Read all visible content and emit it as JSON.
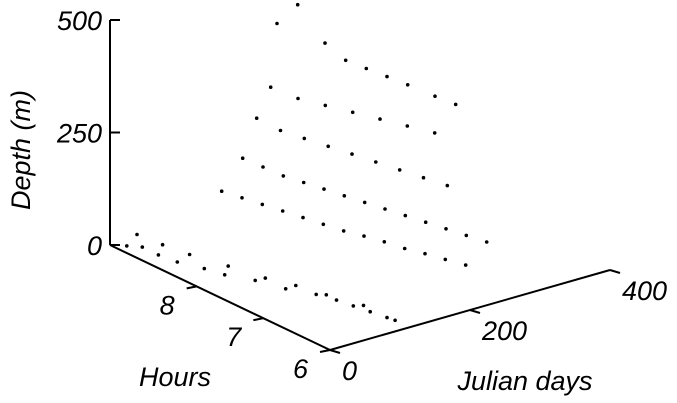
{
  "chart_data": {
    "type": "scatter",
    "projection": "3d",
    "xlabel": "Julian days",
    "ylabel": "Hours",
    "zlabel": "Depth (m)",
    "x_ticks": [
      {
        "value": 0,
        "label": "0"
      },
      {
        "value": 200,
        "label": "200"
      },
      {
        "value": 400,
        "label": "400"
      }
    ],
    "y_ticks": [
      {
        "value": 6,
        "label": "6"
      },
      {
        "value": 7,
        "label": "7"
      },
      {
        "value": 8,
        "label": "8"
      }
    ],
    "z_ticks": [
      {
        "value": 0,
        "label": "0"
      },
      {
        "value": 250,
        "label": "250"
      },
      {
        "value": 500,
        "label": "500"
      }
    ],
    "xlim": [
      0,
      400
    ],
    "ylim": [
      6,
      9.3
    ],
    "zlim": [
      0,
      500
    ],
    "grid": false,
    "series": [
      {
        "description_points": "approximate sampled points",
        "points": [
          [
            5,
            9.1,
            10
          ],
          [
            8,
            8.9,
            20
          ],
          [
            12,
            8.7,
            15
          ],
          [
            20,
            8.5,
            10
          ],
          [
            30,
            8.2,
            12
          ],
          [
            40,
            8.0,
            8
          ],
          [
            55,
            7.7,
            10
          ],
          [
            70,
            7.4,
            6
          ],
          [
            85,
            7.1,
            8
          ],
          [
            95,
            6.9,
            5
          ],
          [
            100,
            6.7,
            4
          ],
          [
            105,
            6.5,
            3
          ],
          [
            110,
            6.3,
            2
          ],
          [
            112,
            6.2,
            2
          ],
          [
            10,
            9.0,
            40
          ],
          [
            18,
            8.7,
            35
          ],
          [
            28,
            8.4,
            30
          ],
          [
            45,
            8.0,
            25
          ],
          [
            60,
            7.6,
            20
          ],
          [
            75,
            7.3,
            18
          ],
          [
            90,
            7.0,
            12
          ],
          [
            105,
            6.6,
            10
          ],
          [
            150,
            9.2,
            60
          ],
          [
            160,
            9.0,
            55
          ],
          [
            170,
            8.8,
            50
          ],
          [
            180,
            8.6,
            45
          ],
          [
            190,
            8.4,
            40
          ],
          [
            200,
            8.2,
            35
          ],
          [
            210,
            8.0,
            30
          ],
          [
            220,
            7.8,
            28
          ],
          [
            230,
            7.6,
            25
          ],
          [
            240,
            7.4,
            20
          ],
          [
            250,
            7.2,
            18
          ],
          [
            260,
            7.0,
            15
          ],
          [
            270,
            6.8,
            12
          ],
          [
            180,
            9.2,
            120
          ],
          [
            190,
            9.0,
            110
          ],
          [
            200,
            8.8,
            100
          ],
          [
            210,
            8.6,
            95
          ],
          [
            220,
            8.4,
            90
          ],
          [
            230,
            8.2,
            85
          ],
          [
            240,
            8.0,
            80
          ],
          [
            250,
            7.8,
            75
          ],
          [
            260,
            7.6,
            70
          ],
          [
            270,
            7.4,
            65
          ],
          [
            280,
            7.2,
            60
          ],
          [
            290,
            7.0,
            55
          ],
          [
            300,
            6.8,
            50
          ],
          [
            200,
            9.2,
            200
          ],
          [
            215,
            9.0,
            180
          ],
          [
            230,
            8.8,
            170
          ],
          [
            245,
            8.6,
            160
          ],
          [
            260,
            8.4,
            150
          ],
          [
            275,
            8.2,
            140
          ],
          [
            290,
            8.0,
            130
          ],
          [
            305,
            7.8,
            120
          ],
          [
            320,
            7.6,
            110
          ],
          [
            220,
            9.2,
            260
          ],
          [
            240,
            9.0,
            240
          ],
          [
            260,
            8.8,
            230
          ],
          [
            280,
            8.6,
            220
          ],
          [
            300,
            8.4,
            210
          ],
          [
            320,
            8.2,
            200
          ],
          [
            340,
            8.0,
            190
          ],
          [
            195,
            9.1,
            500
          ],
          [
            210,
            9.0,
            420
          ],
          [
            230,
            8.9,
            460
          ],
          [
            250,
            8.7,
            380
          ],
          [
            270,
            8.6,
            340
          ],
          [
            290,
            8.5,
            320
          ],
          [
            310,
            8.4,
            300
          ],
          [
            330,
            8.3,
            280
          ],
          [
            350,
            8.1,
            260
          ],
          [
            370,
            8.0,
            240
          ]
        ]
      }
    ]
  }
}
